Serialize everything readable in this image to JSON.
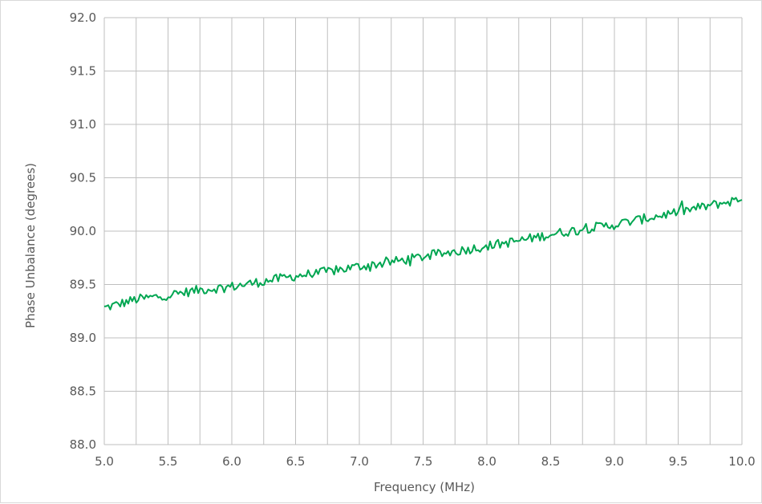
{
  "chart_data": {
    "type": "line",
    "title": "",
    "xlabel": "Frequency (MHz)",
    "ylabel": "Phase Unbalance (degrees)",
    "xlim": [
      5.0,
      10.0
    ],
    "ylim": [
      88.0,
      92.0
    ],
    "x_ticks": [
      "5.0",
      "5.5",
      "6.0",
      "6.5",
      "7.0",
      "7.5",
      "8.0",
      "8.5",
      "9.0",
      "9.5",
      "10.0"
    ],
    "y_ticks": [
      "88.0",
      "88.5",
      "89.0",
      "89.5",
      "90.0",
      "90.5",
      "91.0",
      "91.5",
      "92.0"
    ],
    "x_gridlines_per_major": 2,
    "grid": true,
    "legend": "none",
    "series": [
      {
        "color": "#00a651",
        "x": [
          5.0,
          5.25,
          5.5,
          5.75,
          6.0,
          6.25,
          6.5,
          6.75,
          7.0,
          7.25,
          7.5,
          7.75,
          8.0,
          8.25,
          8.5,
          8.75,
          9.0,
          9.25,
          9.5,
          9.75,
          10.0
        ],
        "y": [
          89.28,
          89.36,
          89.4,
          89.45,
          89.48,
          89.53,
          89.58,
          89.62,
          89.67,
          89.71,
          89.76,
          89.81,
          89.86,
          89.91,
          89.97,
          90.02,
          90.06,
          90.12,
          90.18,
          90.24,
          90.3
        ],
        "samples": 320
      }
    ]
  }
}
